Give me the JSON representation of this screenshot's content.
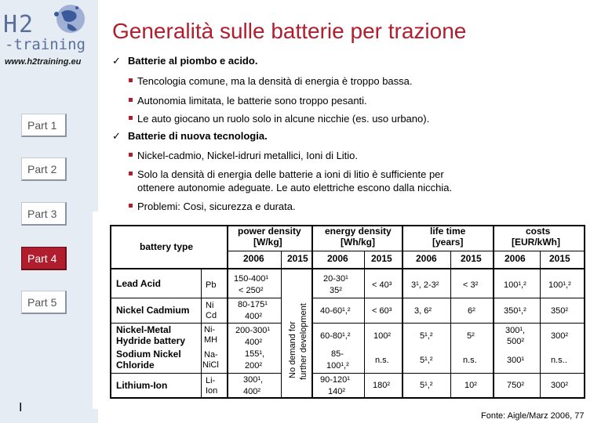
{
  "sidebar": {
    "logo_h2": "H2",
    "logo_training": "-training",
    "url": "www.h2training.eu",
    "parts": [
      "Part 1",
      "Part 2",
      "Part 3",
      "Part 4",
      "Part 5"
    ],
    "active_part": "Part 4",
    "page_number": "I"
  },
  "title": "Generalità sulle batterie per trazione",
  "bullets": {
    "b1": "Batterie al piombo e acido.",
    "b1_items": [
      "Tencologia comune, ma la densità di energia è troppo bassa.",
      "Autonomia limitata, le batterie sono troppo pesanti.",
      "Le auto giocano un ruolo solo in alcune nicchie (es. uso urbano)."
    ],
    "b2": "Batterie di nuova tecnologia.",
    "b2_items": [
      "Nickel-cadmio, Nickel-idruri metallici, Ioni di Litio.",
      "Solo la densità di energia delle batterie a ioni di litio è sufficiente per",
      "ottenere autonomie adeguate.  Le auto elettriche escono dalla nicchia.",
      "Problemi: Cosi, sicurezza e durata."
    ]
  },
  "table": {
    "battery_type": "battery type",
    "groups": [
      {
        "label1": "power density",
        "label2": "[W/kg]"
      },
      {
        "label1": "energy density",
        "label2": "[Wh/kg]"
      },
      {
        "label1": "life time",
        "label2": "[years]"
      },
      {
        "label1": "costs",
        "label2": "[EUR/kWh]"
      }
    ],
    "years": [
      "2006",
      "2015"
    ],
    "no_demand_1": "No demand for",
    "no_demand_2": "further development",
    "rows": [
      {
        "name1": "Lead Acid",
        "name2": "",
        "sym1": "Pb",
        "sym2": "",
        "p2006": "150-400¹",
        "p2006b": "< 250²",
        "p2015": "",
        "e2006": "20-30¹",
        "e2006b": "35²",
        "e2015": "< 40³",
        "l2006": "3¹, 2-3²",
        "l2015": "< 3²",
        "c2006": "100¹,²",
        "c2015": "100¹,²"
      },
      {
        "name1": "Nickel Cadmium",
        "name2": "",
        "sym1": "Ni",
        "sym2": "Cd",
        "p2006": "80-175¹",
        "p2006b": "400²",
        "p2015": "",
        "e2006": "40-60¹,²",
        "e2006b": "",
        "e2015": "< 60³",
        "l2006": "3, 6²",
        "l2015": "6²",
        "c2006": "350¹,²",
        "c2015": "350²"
      },
      {
        "name1": "Nickel-Metal",
        "name2": "Hydride battery",
        "sym1": "Ni-",
        "sym2": "MH",
        "p2006": "200-300¹",
        "p2006b": "400²",
        "p2015": "",
        "e2006": "60-80¹,²",
        "e2006b": "",
        "e2015": "100²",
        "l2006": "5¹,²",
        "l2015": "5²",
        "c2006": "300¹,",
        "c2006b": "500²",
        "c2015": "300²"
      },
      {
        "name1": "Sodium Nickel",
        "name2": "Chloride",
        "sym1": "Na-",
        "sym2": "NiCl",
        "p2006": "155¹,",
        "p2006b": "200²",
        "p2015": "",
        "e2006": "85-",
        "e2006b": "100¹,²",
        "e2015": "n.s.",
        "l2006": "5¹,²",
        "l2015": "n.s.",
        "c2006": "300¹",
        "c2015": "n.s.."
      },
      {
        "name1": "Lithium-Ion",
        "name2": "",
        "sym1": "Li-",
        "sym2": "Ion",
        "p2006": "300¹,",
        "p2006b": "400²",
        "p2015": "",
        "e2006": "90-120¹",
        "e2006b": "140²",
        "e2015": "180²",
        "l2006": "5¹,²",
        "l2015": "10²",
        "c2006": "750²",
        "c2015": "300²"
      }
    ]
  },
  "source": "Fonte: Aigle/Marz 2006, 77",
  "colors": {
    "accent": "#b01e2e",
    "sidebar": "#e6ecf4",
    "logo_blue": "#3a5a9a"
  }
}
